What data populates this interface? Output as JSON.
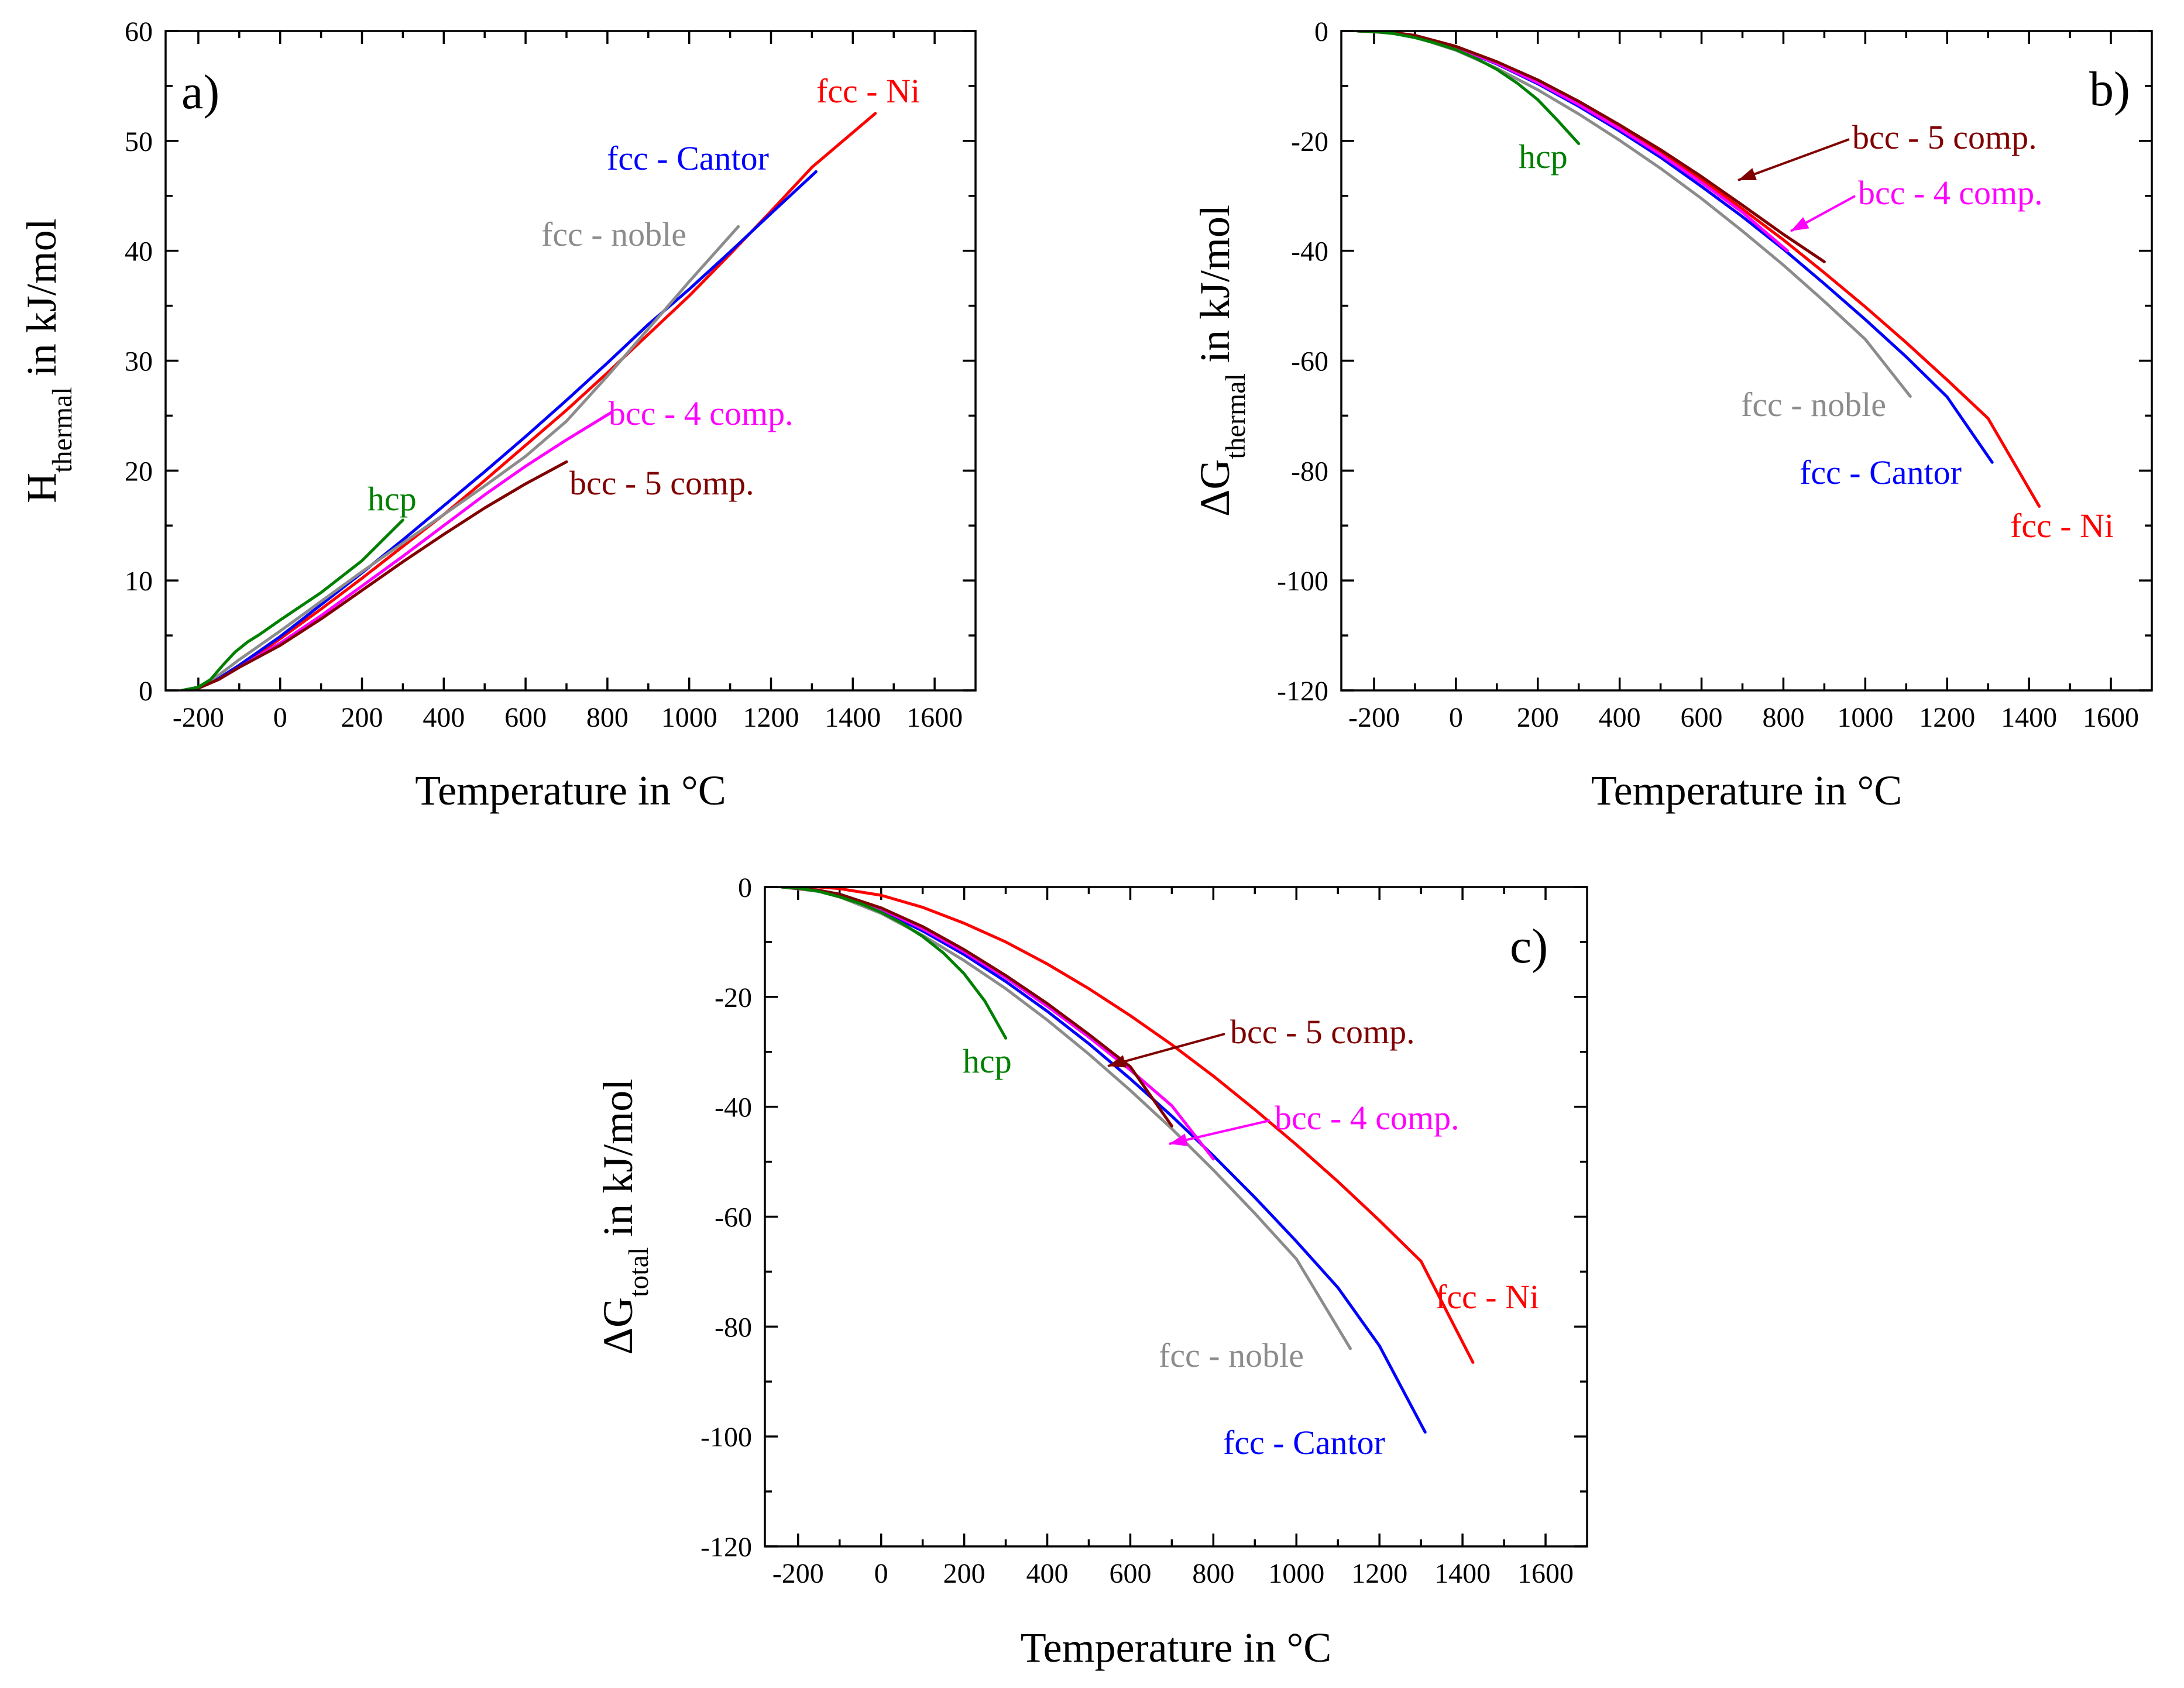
{
  "colors": {
    "fcc-Ni": "#ff0000",
    "fcc-Cantor": "#0000ff",
    "fcc-noble": "#8c8c8c",
    "bcc-4": "#ff00ff",
    "bcc-5": "#800000",
    "hcp": "#008000"
  },
  "chart_data": [
    {
      "type": "line",
      "panel": "a)",
      "xlabel": "Temperature in °C",
      "ylabel_main": "H",
      "ylabel_sub": "thermal",
      "ylabel_rest": " in kJ/mol",
      "xlim": [
        -280,
        1700
      ],
      "ylim": [
        0,
        60
      ],
      "xticks": [
        -200,
        0,
        200,
        400,
        600,
        800,
        1000,
        1200,
        1400,
        1600
      ],
      "yticks": [
        0,
        10,
        20,
        30,
        40,
        50,
        60
      ],
      "series": [
        {
          "key": "fcc-Ni",
          "name": "fcc - Ni",
          "x": [
            -240,
            -200,
            -150,
            -100,
            -50,
            0,
            100,
            200,
            300,
            400,
            500,
            600,
            700,
            800,
            900,
            1000,
            1100,
            1200,
            1300,
            1455
          ],
          "y": [
            0,
            0.2,
            1,
            2.2,
            3.4,
            4.7,
            7.4,
            10.2,
            13.1,
            16,
            19.1,
            22.3,
            25.5,
            28.9,
            32.4,
            35.9,
            39.7,
            43.6,
            47.6,
            52.5
          ]
        },
        {
          "key": "fcc-Cantor",
          "name": "fcc - Cantor",
          "x": [
            -240,
            -200,
            -150,
            -100,
            -50,
            0,
            100,
            200,
            300,
            400,
            500,
            600,
            700,
            800,
            900,
            1000,
            1100,
            1200,
            1310
          ],
          "y": [
            0,
            0.2,
            1.1,
            2.3,
            3.6,
            4.9,
            7.8,
            10.7,
            13.7,
            16.8,
            19.9,
            23.1,
            26.4,
            29.8,
            33.3,
            36.5,
            39.9,
            43.4,
            47.2
          ]
        },
        {
          "key": "fcc-noble",
          "name": "fcc - noble",
          "x": [
            -240,
            -200,
            -150,
            -100,
            -50,
            0,
            100,
            200,
            300,
            400,
            500,
            600,
            700,
            800,
            900,
            1000,
            1120
          ],
          "y": [
            0,
            0.3,
            1.4,
            2.8,
            4.1,
            5.4,
            8.1,
            10.8,
            13.4,
            16,
            18.6,
            21.3,
            24.5,
            28.6,
            32.9,
            37.2,
            42.2
          ]
        },
        {
          "key": "bcc-4",
          "name": "bcc - 4 comp.",
          "x": [
            -240,
            -200,
            -150,
            -100,
            -50,
            0,
            100,
            200,
            300,
            400,
            500,
            600,
            700,
            810
          ],
          "y": [
            0,
            0.2,
            1,
            2.1,
            3.2,
            4.3,
            6.8,
            9.5,
            12.2,
            15,
            17.8,
            20.4,
            22.8,
            25.3
          ]
        },
        {
          "key": "bcc-5",
          "name": "bcc - 5 comp.",
          "x": [
            -240,
            -200,
            -150,
            -100,
            -50,
            0,
            100,
            200,
            300,
            400,
            500,
            600,
            700
          ],
          "y": [
            0,
            0.2,
            1,
            2.1,
            3.1,
            4.1,
            6.5,
            9.1,
            11.7,
            14.2,
            16.6,
            18.8,
            20.8
          ]
        },
        {
          "key": "hcp",
          "name": "hcp",
          "x": [
            -240,
            -200,
            -170,
            -140,
            -110,
            -80,
            -50,
            0,
            100,
            200,
            300
          ],
          "y": [
            0,
            0.3,
            1,
            2.3,
            3.5,
            4.4,
            5.1,
            6.4,
            8.9,
            11.8,
            15.5
          ]
        }
      ],
      "labels": [
        {
          "key": "fcc-Ni",
          "text": "fcc - Ni"
        },
        {
          "key": "fcc-Cantor",
          "text": "fcc - Cantor"
        },
        {
          "key": "fcc-noble",
          "text": "fcc - noble"
        },
        {
          "key": "bcc-4",
          "text": "bcc - 4 comp."
        },
        {
          "key": "bcc-5",
          "text": "bcc - 5 comp."
        },
        {
          "key": "hcp",
          "text": "hcp"
        }
      ]
    },
    {
      "type": "line",
      "panel": "b)",
      "xlabel": "Temperature in °C",
      "ylabel_main": "ΔG",
      "ylabel_sub": "thermal",
      "ylabel_rest": " in kJ/mol",
      "xlim": [
        -280,
        1700
      ],
      "ylim": [
        -120,
        0
      ],
      "xticks": [
        -200,
        0,
        200,
        400,
        600,
        800,
        1000,
        1200,
        1400,
        1600
      ],
      "yticks": [
        0,
        -20,
        -40,
        -60,
        -80,
        -100,
        -120
      ],
      "series": [
        {
          "key": "fcc-Ni",
          "name": "fcc - Ni",
          "x": [
            -240,
            -150,
            -100,
            0,
            100,
            200,
            300,
            400,
            500,
            600,
            700,
            800,
            900,
            1000,
            1100,
            1200,
            1300,
            1425
          ],
          "y": [
            0,
            -0.3,
            -0.8,
            -2.8,
            -5.6,
            -9,
            -13,
            -17.3,
            -22,
            -27,
            -32.4,
            -38,
            -44,
            -50.2,
            -56.7,
            -63.5,
            -70.5,
            -86.5
          ]
        },
        {
          "key": "fcc-Cantor",
          "name": "fcc - Cantor",
          "x": [
            -240,
            -150,
            -100,
            0,
            100,
            200,
            300,
            400,
            500,
            600,
            700,
            800,
            900,
            1000,
            1100,
            1200,
            1310
          ],
          "y": [
            0,
            -0.3,
            -0.9,
            -3,
            -6,
            -9.6,
            -13.7,
            -18.2,
            -23,
            -28.3,
            -33.8,
            -39.7,
            -46,
            -52.5,
            -59.3,
            -66.6,
            -78.5
          ]
        },
        {
          "key": "fcc-noble",
          "name": "fcc - noble",
          "x": [
            -240,
            -150,
            -100,
            0,
            100,
            200,
            300,
            400,
            500,
            600,
            700,
            800,
            900,
            1000,
            1110
          ],
          "y": [
            0,
            -0.4,
            -1.1,
            -3.5,
            -6.8,
            -10.7,
            -15.1,
            -19.9,
            -25,
            -30.5,
            -36.4,
            -42.6,
            -49.2,
            -56.1,
            -66.5
          ]
        },
        {
          "key": "bcc-4",
          "name": "bcc - 4 comp.",
          "x": [
            -240,
            -150,
            -100,
            0,
            100,
            200,
            300,
            400,
            500,
            600,
            700,
            810
          ],
          "y": [
            0,
            -0.3,
            -0.9,
            -3,
            -5.9,
            -9.4,
            -13.4,
            -17.8,
            -22.5,
            -27.6,
            -33,
            -40
          ]
        },
        {
          "key": "bcc-5",
          "name": "bcc - 5 comp.",
          "x": [
            -240,
            -150,
            -100,
            0,
            100,
            200,
            300,
            400,
            500,
            600,
            700,
            800,
            900
          ],
          "y": [
            0,
            -0.3,
            -0.8,
            -2.8,
            -5.6,
            -8.9,
            -12.8,
            -17.1,
            -21.6,
            -26.5,
            -31.7,
            -37,
            -42
          ]
        },
        {
          "key": "hcp",
          "name": "hcp",
          "x": [
            -240,
            -200,
            -150,
            -100,
            -50,
            0,
            50,
            100,
            150,
            200,
            250,
            300
          ],
          "y": [
            0,
            -0.1,
            -0.5,
            -1.2,
            -2.2,
            -3.4,
            -5,
            -7,
            -9.5,
            -12.5,
            -16.4,
            -20.5
          ]
        }
      ],
      "labels": [
        {
          "key": "bcc-5",
          "text": "bcc - 5 comp."
        },
        {
          "key": "bcc-4",
          "text": "bcc - 4 comp."
        },
        {
          "key": "hcp",
          "text": "hcp"
        },
        {
          "key": "fcc-noble",
          "text": "fcc - noble"
        },
        {
          "key": "fcc-Cantor",
          "text": "fcc - Cantor"
        },
        {
          "key": "fcc-Ni",
          "text": "fcc - Ni"
        }
      ]
    },
    {
      "type": "line",
      "panel": "c)",
      "xlabel": "Temperature in °C",
      "ylabel_main": "ΔG",
      "ylabel_sub": "total",
      "ylabel_rest": " in kJ/mol",
      "xlim": [
        -280,
        1700
      ],
      "ylim": [
        -120,
        0
      ],
      "xticks": [
        -200,
        0,
        200,
        400,
        600,
        800,
        1000,
        1200,
        1400,
        1600
      ],
      "yticks": [
        0,
        -20,
        -40,
        -60,
        -80,
        -100,
        -120
      ],
      "series": [
        {
          "key": "fcc-Ni",
          "name": "fcc - Ni",
          "x": [
            -240,
            -150,
            -100,
            0,
            100,
            200,
            300,
            400,
            500,
            600,
            700,
            800,
            900,
            1000,
            1100,
            1200,
            1300,
            1425
          ],
          "y": [
            0,
            0,
            -0.3,
            -1.5,
            -3.7,
            -6.6,
            -10,
            -14,
            -18.5,
            -23.4,
            -28.7,
            -34.4,
            -40.5,
            -46.9,
            -53.6,
            -60.7,
            -68.1,
            -86.5
          ]
        },
        {
          "key": "fcc-Cantor",
          "name": "fcc - Cantor",
          "x": [
            -240,
            -150,
            -100,
            0,
            100,
            200,
            300,
            400,
            500,
            600,
            700,
            800,
            900,
            1000,
            1100,
            1200,
            1310
          ],
          "y": [
            0,
            -0.7,
            -1.5,
            -4.3,
            -8,
            -12.3,
            -17.2,
            -22.6,
            -28.5,
            -34.9,
            -41.7,
            -48.9,
            -56.5,
            -64.5,
            -72.9,
            -83.5,
            -99.2
          ]
        },
        {
          "key": "fcc-noble",
          "name": "fcc - noble",
          "x": [
            -240,
            -150,
            -100,
            0,
            100,
            200,
            300,
            400,
            500,
            600,
            700,
            800,
            900,
            1000,
            1130
          ],
          "y": [
            0,
            -0.8,
            -1.8,
            -4.8,
            -8.8,
            -13.4,
            -18.5,
            -24.2,
            -30.4,
            -37,
            -44,
            -51.5,
            -59.4,
            -67.7,
            -84
          ]
        },
        {
          "key": "bcc-4",
          "name": "bcc - 4 comp.",
          "x": [
            -240,
            -150,
            -100,
            0,
            100,
            200,
            300,
            400,
            500,
            600,
            700,
            800
          ],
          "y": [
            0,
            -0.6,
            -1.4,
            -4,
            -7.6,
            -11.8,
            -16.5,
            -21.7,
            -27.3,
            -33.3,
            -39.8,
            -49.5
          ]
        },
        {
          "key": "bcc-5",
          "name": "bcc - 5 comp.",
          "x": [
            -240,
            -150,
            -100,
            0,
            100,
            200,
            300,
            400,
            500,
            600,
            700
          ],
          "y": [
            0,
            -0.6,
            -1.3,
            -3.8,
            -7.2,
            -11.4,
            -16.1,
            -21.2,
            -26.8,
            -32.7,
            -43.5
          ]
        },
        {
          "key": "hcp",
          "name": "hcp",
          "x": [
            -240,
            -200,
            -150,
            -100,
            -50,
            0,
            50,
            100,
            150,
            200,
            250,
            300
          ],
          "y": [
            0,
            -0.2,
            -0.8,
            -1.8,
            -3,
            -4.6,
            -6.6,
            -9,
            -12,
            -15.8,
            -20.8,
            -27.5
          ]
        }
      ],
      "labels": [
        {
          "key": "bcc-5",
          "text": "bcc - 5 comp."
        },
        {
          "key": "bcc-4",
          "text": "bcc - 4 comp."
        },
        {
          "key": "hcp",
          "text": "hcp"
        },
        {
          "key": "fcc-Ni",
          "text": "fcc - Ni"
        },
        {
          "key": "fcc-noble",
          "text": "fcc - noble"
        },
        {
          "key": "fcc-Cantor",
          "text": "fcc - Cantor"
        }
      ]
    }
  ]
}
